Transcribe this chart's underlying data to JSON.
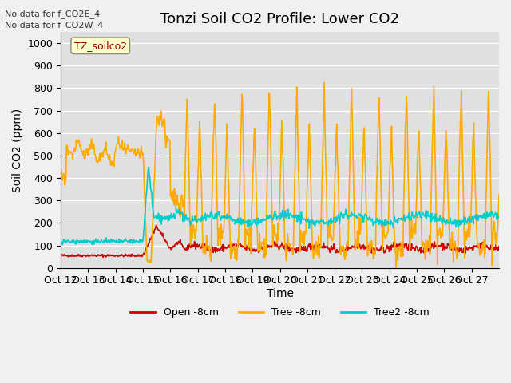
{
  "title": "Tonzi Soil CO2 Profile: Lower CO2",
  "ylabel": "Soil CO2 (ppm)",
  "xlabel": "Time",
  "top_note1": "No data for f_CO2E_4",
  "top_note2": "No data for f_CO2W_4",
  "legend_label": "TZ_soilco2",
  "legend_labels": [
    "Open -8cm",
    "Tree -8cm",
    "Tree2 -8cm"
  ],
  "colors": {
    "open": "#cc0000",
    "tree": "#ffaa00",
    "tree2": "#00cccc"
  },
  "ylim": [
    0,
    1050
  ],
  "yticks": [
    0,
    100,
    200,
    300,
    400,
    500,
    600,
    700,
    800,
    900,
    1000
  ],
  "xtick_labels": [
    "Oct 12",
    "Oct 13",
    "Oct 14",
    "Oct 15",
    "Oct 16",
    "Oct 17",
    "Oct 18",
    "Oct 19",
    "Oct 20",
    "Oct 21",
    "Oct 22",
    "Oct 23",
    "Oct 24",
    "Oct 25",
    "Oct 26",
    "Oct 27"
  ],
  "fig_bg": "#f0f0f0",
  "plot_bg": "#e0e0e0",
  "grid_color": "#ffffff",
  "title_fontsize": 13,
  "axis_label_fontsize": 10,
  "tick_fontsize": 9
}
